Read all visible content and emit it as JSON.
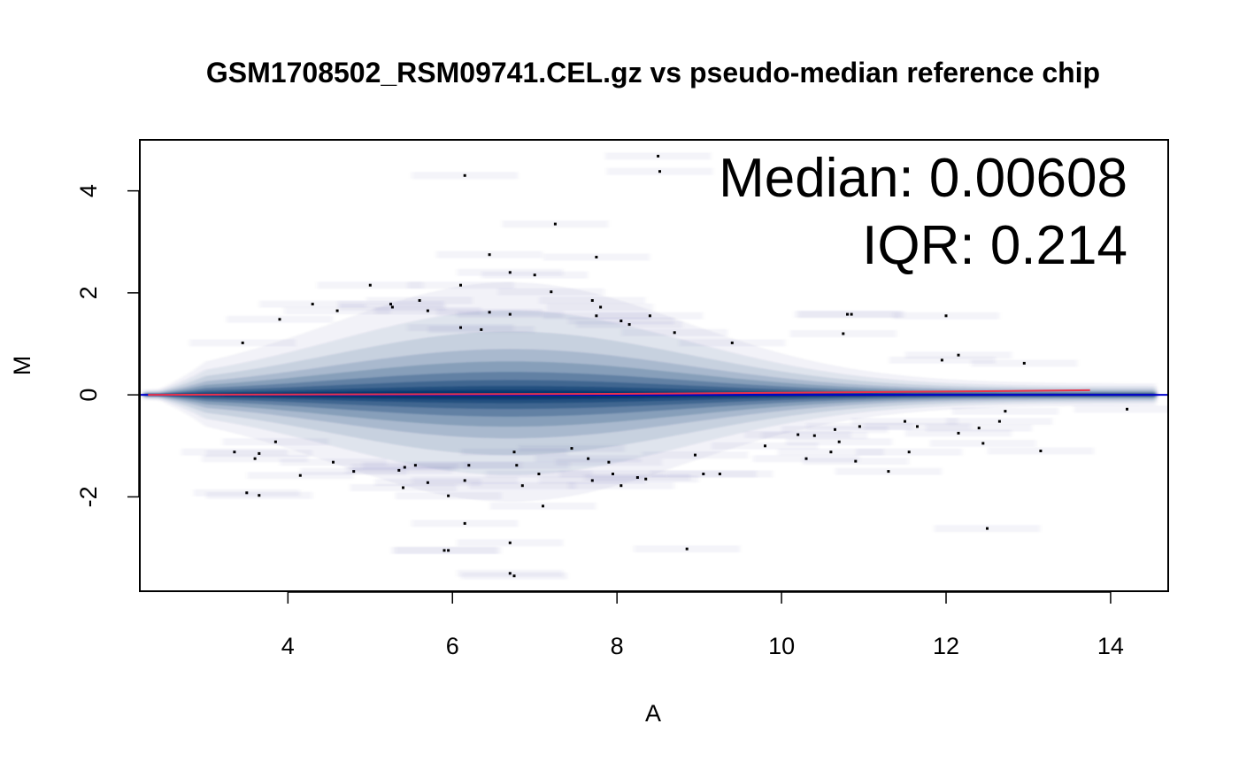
{
  "chart_data": {
    "type": "scatter",
    "title": "GSM1708502_RSM09741.CEL.gz vs pseudo-median reference chip",
    "xlabel": "A",
    "ylabel": "M",
    "xlim": [
      2.2,
      14.7
    ],
    "ylim": [
      -3.85,
      5.0
    ],
    "x_ticks": [
      4,
      6,
      8,
      10,
      12,
      14
    ],
    "y_ticks": [
      -2,
      0,
      2,
      4
    ],
    "annotations": [
      "Median: 0.00608",
      "IQR: 0.214"
    ],
    "grid": false,
    "reference_line": {
      "y": 0,
      "color": "#0000cc"
    },
    "loess_curve": {
      "color": "#e8334a",
      "x": [
        2.3,
        4,
        6,
        8,
        10,
        12,
        13.75
      ],
      "y": [
        0.0,
        0.005,
        0.012,
        0.02,
        0.04,
        0.065,
        0.09
      ]
    },
    "density_color": "#08306b",
    "outliers": {
      "x": [
        8.5,
        8.52,
        6.15,
        7.25,
        6.45,
        6.7,
        7.0,
        7.75,
        5.0,
        5.25,
        5.27,
        6.1,
        7.2,
        7.7,
        7.8,
        4.3,
        4.6,
        5.6,
        5.7,
        6.45,
        6.7,
        7.75,
        8.05,
        8.15,
        8.4,
        3.9,
        3.45,
        6.1,
        6.35,
        8.7,
        9.4,
        10.8,
        10.85,
        10.75,
        12.0,
        12.15,
        11.95,
        12.95,
        3.35,
        3.6,
        3.65,
        3.85,
        4.15,
        4.55,
        4.8,
        5.35,
        5.42,
        5.55,
        5.7,
        5.95,
        6.15,
        6.2,
        6.75,
        6.78,
        6.85,
        7.05,
        7.45,
        7.65,
        7.7,
        7.9,
        7.95,
        8.05,
        8.25,
        8.35,
        8.95,
        9.05,
        9.25,
        9.8,
        10.2,
        10.3,
        10.4,
        10.6,
        10.65,
        10.7,
        10.9,
        10.95,
        11.3,
        11.5,
        11.55,
        11.65,
        12.15,
        12.4,
        12.45,
        12.65,
        12.72,
        13.15,
        14.2,
        3.5,
        3.65,
        5.4,
        5.95,
        6.7,
        7.1,
        6.15,
        12.5,
        6.7,
        8.85,
        5.9,
        6.75
      ],
      "y": [
        4.68,
        4.38,
        4.3,
        3.35,
        2.75,
        2.4,
        2.35,
        2.7,
        2.15,
        1.78,
        1.72,
        2.15,
        2.02,
        1.85,
        1.72,
        1.78,
        1.65,
        1.85,
        1.65,
        1.62,
        1.58,
        1.55,
        1.45,
        1.38,
        1.55,
        1.48,
        1.02,
        1.32,
        1.28,
        1.22,
        1.02,
        1.58,
        1.58,
        1.2,
        1.55,
        0.78,
        0.68,
        0.62,
        -1.12,
        -1.25,
        -1.15,
        -0.92,
        -1.58,
        -1.32,
        -1.5,
        -1.48,
        -1.42,
        -1.38,
        -1.72,
        -1.98,
        -1.68,
        -1.38,
        -1.12,
        -1.38,
        -1.78,
        -1.55,
        -1.05,
        -1.25,
        -1.68,
        -1.32,
        -1.55,
        -1.78,
        -1.62,
        -1.65,
        -1.18,
        -1.55,
        -1.55,
        -1.0,
        -0.78,
        -1.25,
        -0.8,
        -1.12,
        -0.68,
        -0.92,
        -1.3,
        -0.62,
        -1.5,
        -0.52,
        -1.12,
        -0.62,
        -0.75,
        -0.65,
        -0.95,
        -0.52,
        -0.32,
        -1.1,
        -0.28,
        -1.92,
        -1.97,
        -1.82,
        -3.05,
        -2.9,
        -2.18,
        -2.52,
        -2.62,
        -3.5,
        -3.02,
        -3.05,
        -3.55
      ]
    }
  }
}
